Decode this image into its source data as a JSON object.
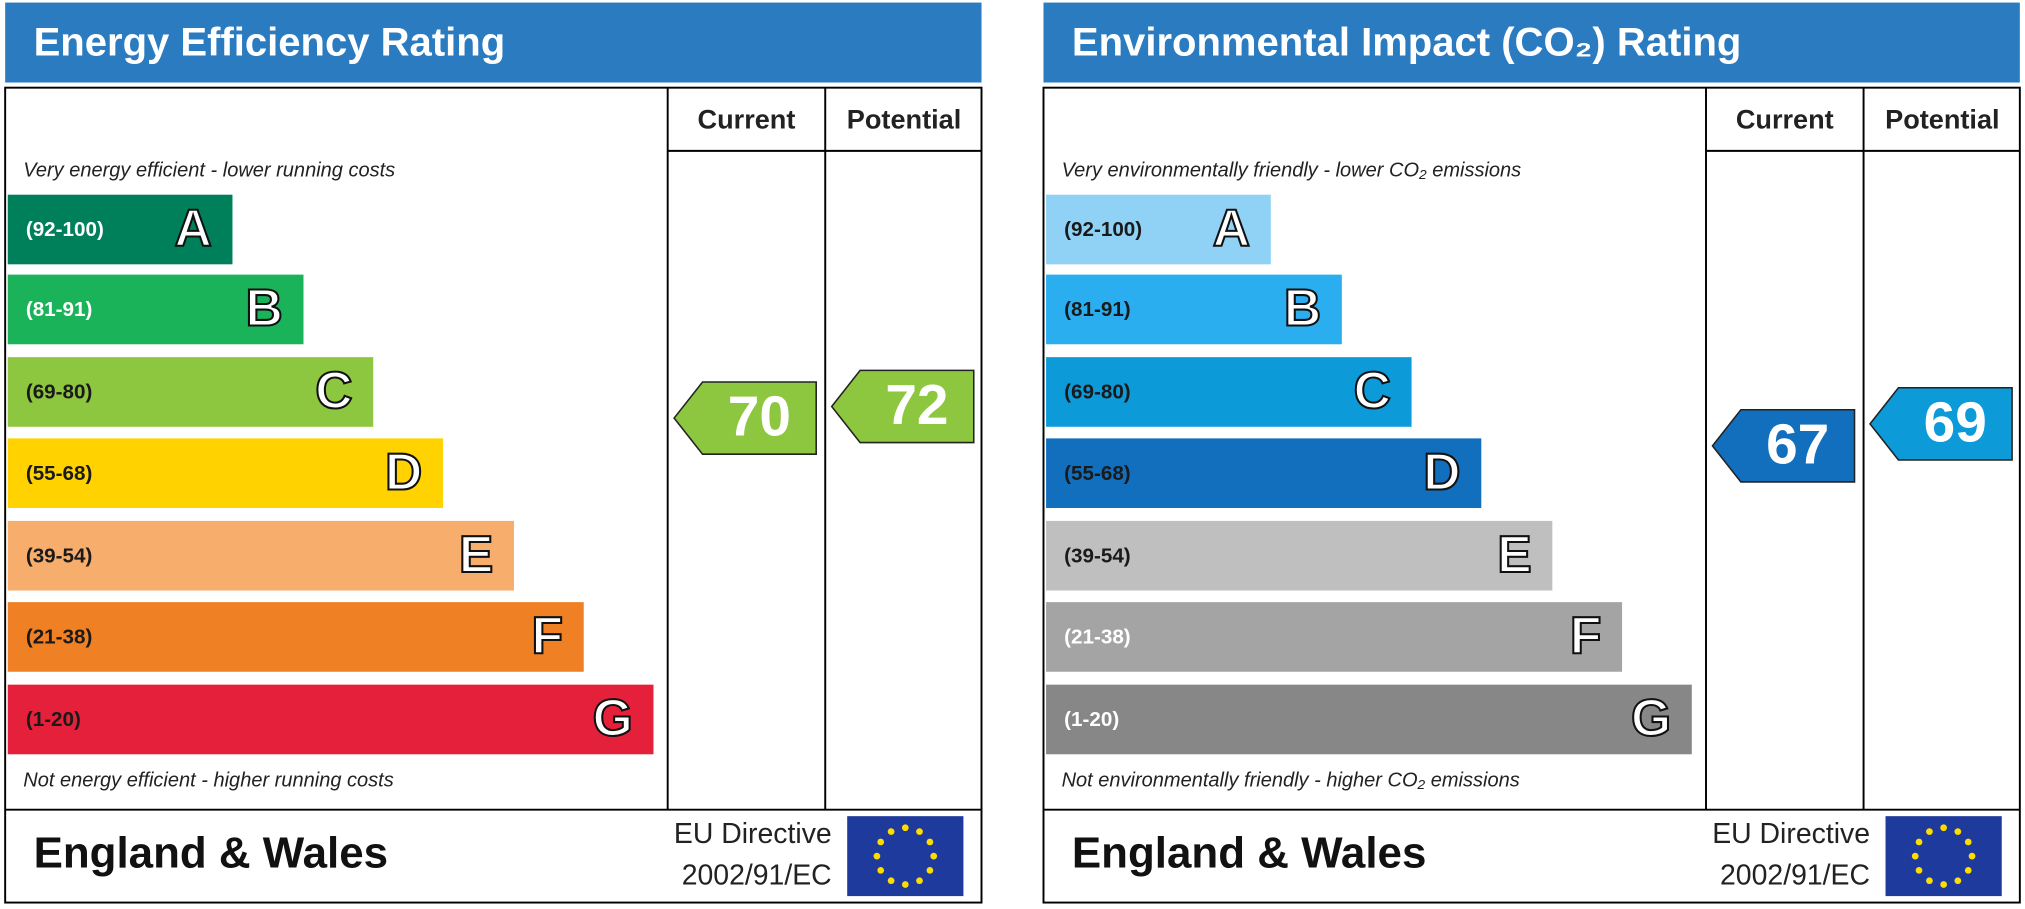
{
  "panels": [
    {
      "title": "Energy Efficiency Rating",
      "columns": [
        "Current",
        "Potential"
      ],
      "top_note": "Very energy efficient - lower running costs",
      "bottom_note": "Not energy efficient - higher running costs",
      "bands": [
        {
          "range": "(92-100)",
          "letter": "A",
          "color": "#00805a",
          "label_color": "#ffffff"
        },
        {
          "range": "(81-91)",
          "letter": "B",
          "color": "#1ab35a",
          "label_color": "#ffffff"
        },
        {
          "range": "(69-80)",
          "letter": "C",
          "color": "#8dc63f",
          "label_color": "#1a1a1a"
        },
        {
          "range": "(55-68)",
          "letter": "D",
          "color": "#ffd200",
          "label_color": "#1a1a1a"
        },
        {
          "range": "(39-54)",
          "letter": "E",
          "color": "#f7ad6b",
          "label_color": "#1a1a1a"
        },
        {
          "range": "(21-38)",
          "letter": "F",
          "color": "#ef8023",
          "label_color": "#1a1a1a"
        },
        {
          "range": "(1-20)",
          "letter": "G",
          "color": "#e4203a",
          "label_color": "#1a1a1a"
        }
      ],
      "current": 70,
      "potential": 72,
      "footer": {
        "region": "England & Wales",
        "directive": [
          "EU Directive",
          "2002/91/EC"
        ]
      }
    },
    {
      "title": "Environmental Impact (CO₂) Rating",
      "columns": [
        "Current",
        "Potential"
      ],
      "top_note": "Very environmentally friendly - lower CO₂ emissions",
      "bottom_note": "Not environmentally friendly - higher CO₂ emissions",
      "bands": [
        {
          "range": "(92-100)",
          "letter": "A",
          "color": "#8fd2f5",
          "label_color": "#1a1a1a"
        },
        {
          "range": "(81-91)",
          "letter": "B",
          "color": "#2aaef0",
          "label_color": "#1a1a1a"
        },
        {
          "range": "(69-80)",
          "letter": "C",
          "color": "#0d9ad9",
          "label_color": "#1a1a1a"
        },
        {
          "range": "(55-68)",
          "letter": "D",
          "color": "#116fbe",
          "label_color": "#1a1a1a"
        },
        {
          "range": "(39-54)",
          "letter": "E",
          "color": "#bfbfbf",
          "label_color": "#1a1a1a"
        },
        {
          "range": "(21-38)",
          "letter": "F",
          "color": "#a4a4a4",
          "label_color": "#ffffff"
        },
        {
          "range": "(1-20)",
          "letter": "G",
          "color": "#878787",
          "label_color": "#ffffff"
        }
      ],
      "current": 67,
      "potential": 69,
      "footer": {
        "region": "England & Wales",
        "directive": [
          "EU Directive",
          "2002/91/EC"
        ]
      }
    }
  ]
}
